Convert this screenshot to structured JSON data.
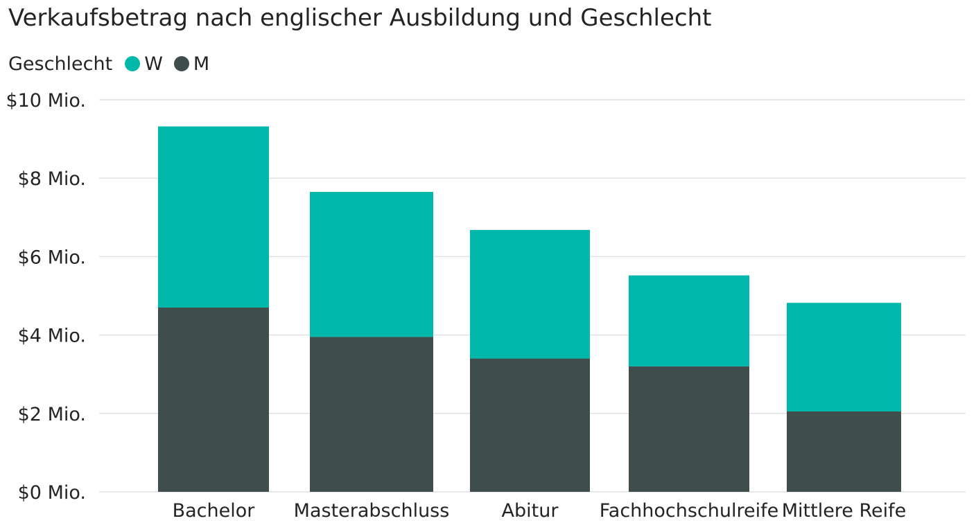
{
  "title": "Verkaufsbetrag nach englischer Ausbildung und Geschlecht",
  "legend": {
    "title": "Geschlecht",
    "items": [
      {
        "label": "W",
        "color": "#01B8AA"
      },
      {
        "label": "M",
        "color": "#3F4D4D"
      }
    ]
  },
  "chart_data": {
    "type": "bar",
    "stacked": true,
    "categories": [
      "Bachelor",
      "Masterabschluss",
      "Abitur",
      "Fachhochschulreife",
      "Mittlere Reife"
    ],
    "series": [
      {
        "name": "M",
        "color": "#3F4D4D",
        "values": [
          4.7,
          3.95,
          3.4,
          3.2,
          2.05
        ]
      },
      {
        "name": "W",
        "color": "#01B8AA",
        "values": [
          4.62,
          3.7,
          3.28,
          2.32,
          2.77
        ]
      }
    ],
    "ylim": [
      0,
      10
    ],
    "yticks": [
      0,
      2,
      4,
      6,
      8,
      10
    ],
    "ytick_labels": [
      "$0 Mio.",
      "$2 Mio.",
      "$4 Mio.",
      "$6 Mio.",
      "$8 Mio.",
      "$10 Mio."
    ],
    "grid": true,
    "xlabel": "",
    "ylabel": ""
  }
}
